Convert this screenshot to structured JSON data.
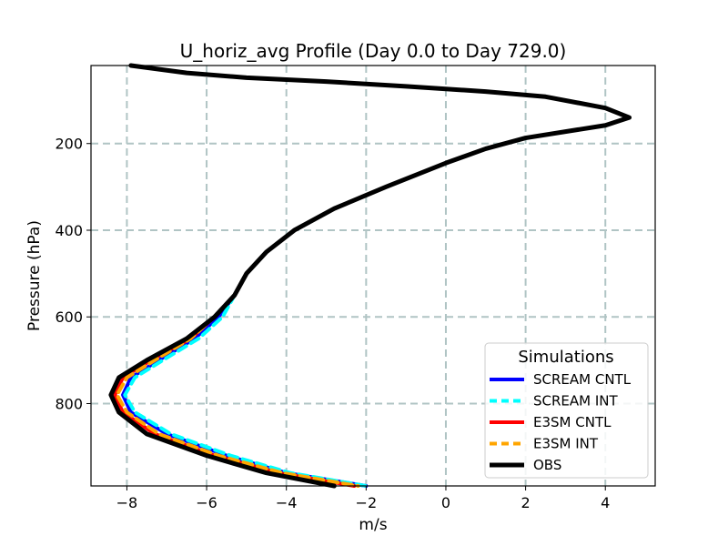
{
  "chart_data": {
    "type": "line",
    "title": "U_horiz_avg Profile (Day 0.0 to Day 729.0)",
    "xlabel": "m/s",
    "ylabel": "Pressure (hPa)",
    "xlim": [
      -8.9,
      5.25
    ],
    "ylim": [
      990,
      20
    ],
    "y_inverted": true,
    "grid": true,
    "x_ticks": [
      -8,
      -6,
      -4,
      -2,
      0,
      2,
      4
    ],
    "x_tick_labels": [
      "−8",
      "−6",
      "−4",
      "−2",
      "0",
      "2",
      "4"
    ],
    "y_ticks": [
      200,
      400,
      600,
      800
    ],
    "y_tick_labels": [
      "200",
      "400",
      "600",
      "800"
    ],
    "legend": {
      "title": "Simulations",
      "position": "lower-right",
      "entries": [
        "SCREAM CNTL",
        "SCREAM INT",
        "E3SM CNTL",
        "E3SM INT",
        "OBS"
      ]
    },
    "series": [
      {
        "name": "SCREAM CNTL",
        "color": "#0000ff",
        "dash": "solid",
        "points": [
          [
            -7.9,
            20
          ],
          [
            -6.5,
            37
          ],
          [
            -5.0,
            48
          ],
          [
            -3.0,
            57
          ],
          [
            -1.0,
            68
          ],
          [
            1.0,
            80
          ],
          [
            2.5,
            92
          ],
          [
            4.0,
            118
          ],
          [
            4.6,
            140
          ],
          [
            4.0,
            158
          ],
          [
            2.0,
            187
          ],
          [
            1.0,
            212
          ],
          [
            0.0,
            245
          ],
          [
            -1.5,
            300
          ],
          [
            -2.8,
            350
          ],
          [
            -3.8,
            400
          ],
          [
            -4.5,
            450
          ],
          [
            -5.0,
            500
          ],
          [
            -5.3,
            550
          ],
          [
            -5.7,
            600
          ],
          [
            -6.3,
            650
          ],
          [
            -7.2,
            700
          ],
          [
            -7.9,
            740
          ],
          [
            -8.1,
            780
          ],
          [
            -7.9,
            820
          ],
          [
            -7.0,
            870
          ],
          [
            -5.5,
            920
          ],
          [
            -4.0,
            960
          ],
          [
            -2.0,
            990
          ]
        ]
      },
      {
        "name": "SCREAM INT",
        "color": "#00ffff",
        "dash": "dashed",
        "points": [
          [
            -7.9,
            20
          ],
          [
            -6.5,
            37
          ],
          [
            -5.0,
            48
          ],
          [
            -3.0,
            57
          ],
          [
            -1.0,
            68
          ],
          [
            1.0,
            80
          ],
          [
            2.5,
            92
          ],
          [
            4.0,
            118
          ],
          [
            4.6,
            140
          ],
          [
            4.0,
            158
          ],
          [
            2.0,
            187
          ],
          [
            1.0,
            212
          ],
          [
            0.0,
            245
          ],
          [
            -1.5,
            300
          ],
          [
            -2.8,
            350
          ],
          [
            -3.8,
            400
          ],
          [
            -4.5,
            450
          ],
          [
            -5.0,
            500
          ],
          [
            -5.3,
            550
          ],
          [
            -5.6,
            600
          ],
          [
            -6.2,
            650
          ],
          [
            -7.1,
            700
          ],
          [
            -7.8,
            740
          ],
          [
            -8.05,
            780
          ],
          [
            -7.8,
            820
          ],
          [
            -6.9,
            870
          ],
          [
            -5.4,
            920
          ],
          [
            -3.9,
            960
          ],
          [
            -2.0,
            990
          ]
        ]
      },
      {
        "name": "E3SM CNTL",
        "color": "#ff0000",
        "dash": "solid",
        "points": [
          [
            -7.9,
            20
          ],
          [
            -6.5,
            37
          ],
          [
            -5.0,
            48
          ],
          [
            -3.0,
            57
          ],
          [
            -1.0,
            68
          ],
          [
            1.0,
            80
          ],
          [
            2.5,
            92
          ],
          [
            4.0,
            118
          ],
          [
            4.6,
            140
          ],
          [
            4.0,
            158
          ],
          [
            2.0,
            187
          ],
          [
            1.0,
            212
          ],
          [
            0.0,
            245
          ],
          [
            -1.5,
            300
          ],
          [
            -2.8,
            350
          ],
          [
            -3.8,
            400
          ],
          [
            -4.5,
            450
          ],
          [
            -5.0,
            500
          ],
          [
            -5.3,
            550
          ],
          [
            -5.8,
            600
          ],
          [
            -6.4,
            650
          ],
          [
            -7.4,
            700
          ],
          [
            -8.1,
            740
          ],
          [
            -8.3,
            780
          ],
          [
            -8.1,
            820
          ],
          [
            -7.3,
            870
          ],
          [
            -5.8,
            920
          ],
          [
            -4.2,
            960
          ],
          [
            -2.3,
            990
          ]
        ]
      },
      {
        "name": "E3SM INT",
        "color": "#ffa500",
        "dash": "dashed",
        "points": [
          [
            -7.9,
            20
          ],
          [
            -6.5,
            37
          ],
          [
            -5.0,
            48
          ],
          [
            -3.0,
            57
          ],
          [
            -1.0,
            68
          ],
          [
            1.0,
            80
          ],
          [
            2.5,
            92
          ],
          [
            4.0,
            118
          ],
          [
            4.6,
            140
          ],
          [
            4.0,
            158
          ],
          [
            2.0,
            187
          ],
          [
            1.0,
            212
          ],
          [
            0.0,
            245
          ],
          [
            -1.5,
            300
          ],
          [
            -2.8,
            350
          ],
          [
            -3.8,
            400
          ],
          [
            -4.5,
            450
          ],
          [
            -5.0,
            500
          ],
          [
            -5.3,
            550
          ],
          [
            -5.8,
            600
          ],
          [
            -6.4,
            650
          ],
          [
            -7.3,
            700
          ],
          [
            -8.0,
            740
          ],
          [
            -8.25,
            780
          ],
          [
            -8.0,
            820
          ],
          [
            -7.2,
            870
          ],
          [
            -5.7,
            920
          ],
          [
            -4.1,
            960
          ],
          [
            -2.2,
            990
          ]
        ]
      },
      {
        "name": "OBS",
        "color": "#000000",
        "dash": "solid",
        "points": [
          [
            -7.9,
            20
          ],
          [
            -6.5,
            37
          ],
          [
            -5.0,
            48
          ],
          [
            -3.0,
            57
          ],
          [
            -1.0,
            68
          ],
          [
            1.0,
            80
          ],
          [
            2.5,
            92
          ],
          [
            4.0,
            118
          ],
          [
            4.6,
            140
          ],
          [
            4.0,
            158
          ],
          [
            2.0,
            187
          ],
          [
            1.0,
            212
          ],
          [
            0.0,
            245
          ],
          [
            -1.5,
            300
          ],
          [
            -2.8,
            350
          ],
          [
            -3.8,
            400
          ],
          [
            -4.5,
            450
          ],
          [
            -5.0,
            500
          ],
          [
            -5.3,
            550
          ],
          [
            -5.8,
            600
          ],
          [
            -6.5,
            650
          ],
          [
            -7.5,
            700
          ],
          [
            -8.2,
            740
          ],
          [
            -8.4,
            780
          ],
          [
            -8.2,
            820
          ],
          [
            -7.5,
            870
          ],
          [
            -6.0,
            920
          ],
          [
            -4.5,
            960
          ],
          [
            -2.8,
            990
          ]
        ]
      }
    ]
  }
}
